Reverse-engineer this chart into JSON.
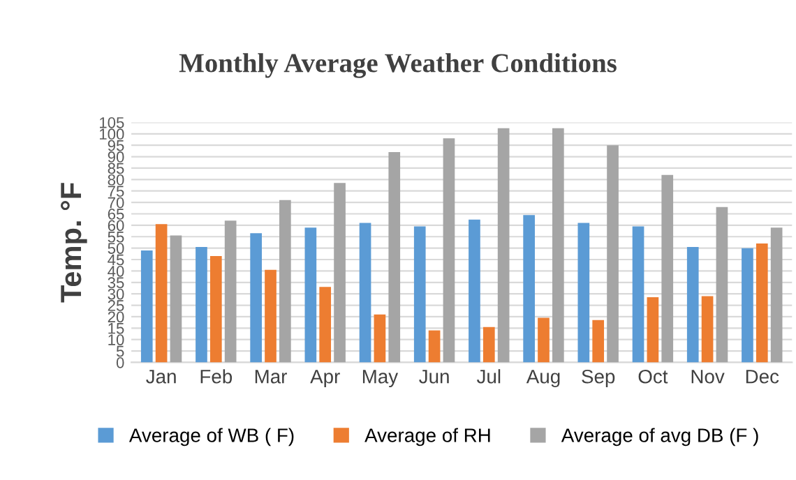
{
  "chart_data": {
    "type": "bar",
    "title": "Monthly Average Weather Conditions",
    "ylabel": "Temp. °F",
    "categories": [
      "Jan",
      "Feb",
      "Mar",
      "Apr",
      "May",
      "Jun",
      "Jul",
      "Aug",
      "Sep",
      "Oct",
      "Nov",
      "Dec"
    ],
    "series": [
      {
        "name": "Average of WB ( F)",
        "color": "#5b9bd5",
        "values": [
          49,
          50.5,
          56.5,
          59,
          61,
          59.5,
          62.5,
          64.5,
          61,
          59.5,
          50.5,
          50
        ]
      },
      {
        "name": "Average of RH",
        "color": "#ed7d31",
        "values": [
          60.5,
          46.5,
          40.5,
          33,
          21,
          14,
          15.5,
          19.5,
          18.5,
          28.5,
          29,
          52
        ]
      },
      {
        "name": "Average of avg DB (F )",
        "color": "#a5a5a5",
        "values": [
          55.5,
          62,
          71,
          78.5,
          92,
          98,
          102.5,
          102.5,
          95,
          82,
          68,
          59
        ]
      }
    ],
    "ylim": [
      0,
      105
    ],
    "yticks": [
      0,
      5,
      10,
      15,
      20,
      25,
      30,
      35,
      40,
      45,
      50,
      55,
      60,
      65,
      70,
      75,
      80,
      85,
      90,
      95,
      100,
      105
    ],
    "grid": "y",
    "legend": "bottom"
  }
}
